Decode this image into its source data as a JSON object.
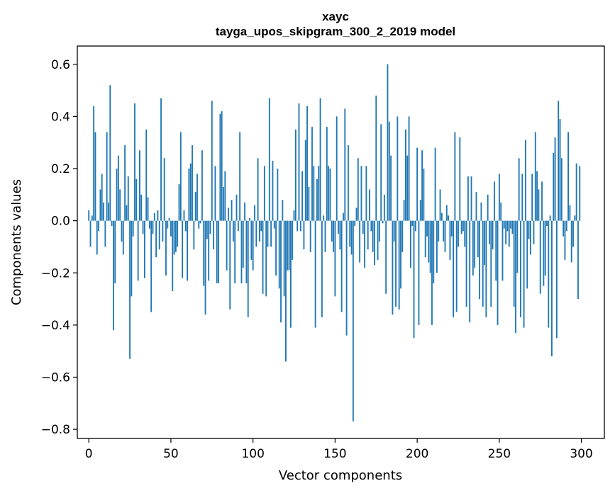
{
  "chart_data": {
    "type": "bar",
    "title": "xayc",
    "subtitle": "tayga_upos_skipgram_300_2_2019 model",
    "xlabel": "Vector components",
    "ylabel": "Components values",
    "xlim": [
      -7,
      314
    ],
    "ylim": [
      -0.835,
      0.67
    ],
    "xticks": [
      0,
      50,
      100,
      150,
      200,
      250,
      300
    ],
    "xtick_labels": [
      "0",
      "50",
      "100",
      "150",
      "200",
      "250",
      "300"
    ],
    "yticks": [
      -0.8,
      -0.6,
      -0.4,
      -0.2,
      0.0,
      0.2,
      0.4,
      0.6
    ],
    "ytick_labels": [
      "−0.8",
      "−0.6",
      "−0.4",
      "−0.2",
      "0.0",
      "0.2",
      "0.4",
      "0.6"
    ],
    "bar_color": "#1f77b4",
    "grid": false,
    "values": [
      0.04,
      -0.1,
      0.02,
      0.44,
      0.34,
      -0.13,
      -0.04,
      0.12,
      0.18,
      0.07,
      -0.1,
      0.34,
      0.07,
      0.52,
      -0.02,
      -0.42,
      -0.24,
      0.2,
      0.25,
      0.12,
      -0.08,
      -0.13,
      0.29,
      0.06,
      0.17,
      -0.53,
      -0.29,
      -0.06,
      0.45,
      0.16,
      -0.23,
      0.27,
      0.1,
      -0.05,
      -0.22,
      0.35,
      0.09,
      -0.03,
      -0.35,
      -0.05,
      0.03,
      -0.14,
      0.04,
      -0.11,
      0.47,
      -0.08,
      0.24,
      -0.21,
      -0.03,
      0.01,
      -0.06,
      -0.27,
      -0.13,
      -0.12,
      -0.1,
      0.14,
      0.34,
      -0.22,
      0.04,
      -0.04,
      -0.23,
      0.2,
      0.22,
      0.29,
      -0.11,
      0.11,
      0.18,
      -0.03,
      -0.01,
      0.27,
      -0.25,
      -0.36,
      -0.07,
      -0.23,
      -0.05,
      0.46,
      -0.11,
      0.21,
      -0.24,
      -0.24,
      0.41,
      0.42,
      0.13,
      0.19,
      -0.19,
      0.05,
      -0.34,
      0.08,
      -0.08,
      -0.24,
      0.1,
      -0.04,
      0.34,
      -0.24,
      -0.18,
      0.07,
      -0.24,
      -0.37,
      0.01,
      -0.15,
      -0.19,
      0.06,
      -0.1,
      0.24,
      -0.08,
      -0.04,
      -0.28,
      0.21,
      -0.29,
      -0.1,
      0.47,
      -0.1,
      0.23,
      -0.03,
      -0.21,
      0.2,
      -0.26,
      -0.39,
      0.08,
      -0.29,
      -0.54,
      -0.19,
      -0.19,
      -0.41,
      -0.15,
      0.04,
      0.35,
      -0.04,
      0.45,
      -0.04,
      0.19,
      -0.11,
      0.31,
      0.44,
      0.13,
      -0.12,
      0.36,
      0.21,
      -0.41,
      0.16,
      0.21,
      0.47,
      -0.37,
      0.02,
      -0.12,
      0.36,
      0.21,
      0.2,
      -0.08,
      -0.12,
      -0.29,
      0.4,
      -0.05,
      -0.11,
      -0.35,
      0.03,
      0.43,
      -0.44,
      0.29,
      -0.1,
      -0.13,
      -0.77,
      -0.02,
      0.05,
      0.24,
      -0.16,
      0.21,
      -0.05,
      -0.18,
      0.21,
      -0.11,
      0.12,
      -0.04,
      -0.12,
      -0.17,
      0.48,
      -0.15,
      -0.08,
      0.37,
      -0.01,
      0.1,
      -0.28,
      0.6,
      0.38,
      0.25,
      -0.36,
      -0.08,
      -0.33,
      0.4,
      -0.34,
      -0.26,
      -0.12,
      0.08,
      0.35,
      0.25,
      0.4,
      -0.18,
      -0.02,
      -0.45,
      -0.04,
      0.28,
      -0.4,
      0.08,
      0.27,
      0.2,
      -0.14,
      -0.06,
      -0.16,
      -0.2,
      -0.4,
      -0.24,
      0.28,
      -0.2,
      -0.08,
      0.12,
      0.03,
      -0.08,
      -0.12,
      0.06,
      0.02,
      -0.15,
      -0.06,
      -0.37,
      0.34,
      -0.35,
      -0.1,
      0.32,
      -0.05,
      -0.04,
      -0.1,
      -0.33,
      0.17,
      -0.39,
      0.17,
      -0.21,
      -0.18,
      0.11,
      -0.14,
      -0.3,
      0.07,
      -0.33,
      -0.17,
      -0.37,
      0.1,
      -0.09,
      -0.33,
      -0.11,
      0.15,
      -0.23,
      -0.4,
      0.18,
      0.07,
      -0.23,
      -0.03,
      -0.09,
      -0.04,
      -0.1,
      -0.03,
      -0.05,
      -0.33,
      -0.43,
      -0.2,
      0.24,
      -0.37,
      0.18,
      -0.41,
      0.31,
      -0.26,
      -0.07,
      -0.13,
      0.18,
      -0.09,
      0.34,
      0.19,
      0.12,
      -0.28,
      0.15,
      -0.25,
      -0.21,
      -0.02,
      -0.41,
      0.02,
      -0.52,
      0.26,
      0.32,
      -0.45,
      0.46,
      0.39,
      0.24,
      -0.06,
      -0.15,
      -0.04,
      0.34,
      0.06,
      -0.16,
      -0.1,
      0.02,
      0.22,
      -0.3,
      0.21
    ]
  }
}
